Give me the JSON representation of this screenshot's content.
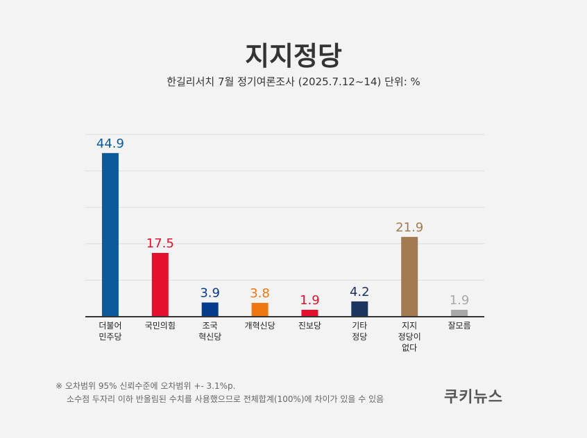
{
  "title": "지지정당",
  "subtitle": "한길리서치 7월 정기여론조사 (2025.7.12~14) 단위: %",
  "notes": [
    "※ 오차범위 95% 신뢰수준에 오차범위 +- 3.1%p.",
    "소수점 두자리 이하 반올림된 수치를 사용했으므로 전체합계(100%)에 차이가 있을 수 있음"
  ],
  "logo": "쿠키뉴스",
  "chart_data": {
    "type": "bar",
    "title": "지지정당",
    "subtitle": "한길리서치 7월 정기여론조사 (2025.7.12~14) 단위: %",
    "categories": [
      [
        "더불어",
        "민주당"
      ],
      [
        "국민의힘"
      ],
      [
        "조국",
        "혁신당"
      ],
      [
        "개혁신당"
      ],
      [
        "진보당"
      ],
      [
        "기타",
        "정당"
      ],
      [
        "지지",
        "정당이",
        "없다"
      ],
      [
        "잘모름"
      ]
    ],
    "values": [
      44.9,
      17.5,
      3.9,
      3.8,
      1.9,
      4.2,
      21.9,
      1.9
    ],
    "value_labels": [
      "44.9",
      "17.5",
      "3.9",
      "3.8",
      "1.9",
      "4.2",
      "21.9",
      "1.9"
    ],
    "colors": [
      "#0c5a9a",
      "#e4102e",
      "#053b8c",
      "#ee7711",
      "#e4102e",
      "#1c3460",
      "#a37a51",
      "#a9a9a9"
    ],
    "ylim": [
      0,
      50
    ],
    "grid": true,
    "legend": "none"
  }
}
